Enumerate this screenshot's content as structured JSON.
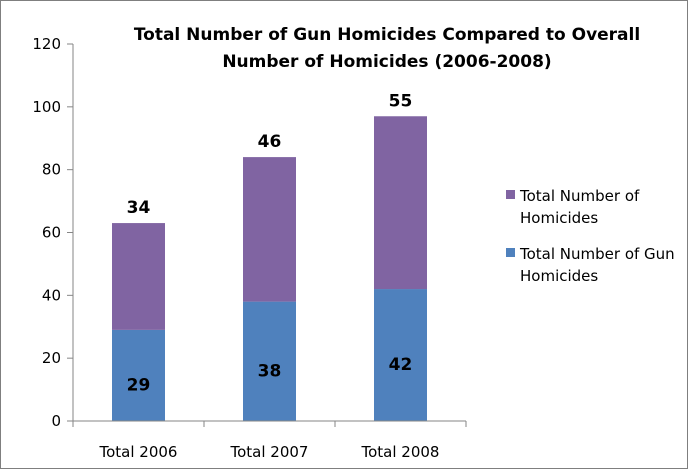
{
  "chart_data": {
    "type": "bar",
    "stacked": true,
    "title_lines": [
      "Total Number of Gun Homicides Compared to Overall",
      "Number of Homicides (2006-2008)"
    ],
    "categories": [
      "Total 2006",
      "Total 2007",
      "Total 2008"
    ],
    "series": [
      {
        "name": "Total Number of Gun Homicides",
        "legend_lines": [
          "Total Number of Gun",
          "Homicides"
        ],
        "values": [
          29,
          38,
          42
        ],
        "color": "#4f81bd"
      },
      {
        "name": "Total Number of Homicides",
        "legend_lines": [
          "Total Number of",
          "Homicides"
        ],
        "values": [
          34,
          46,
          55
        ],
        "color": "#8064a2"
      }
    ],
    "ylim": [
      0,
      120
    ],
    "yticks": [
      0,
      20,
      40,
      60,
      80,
      100,
      120
    ],
    "gridlines": false,
    "legend_position": "right"
  }
}
